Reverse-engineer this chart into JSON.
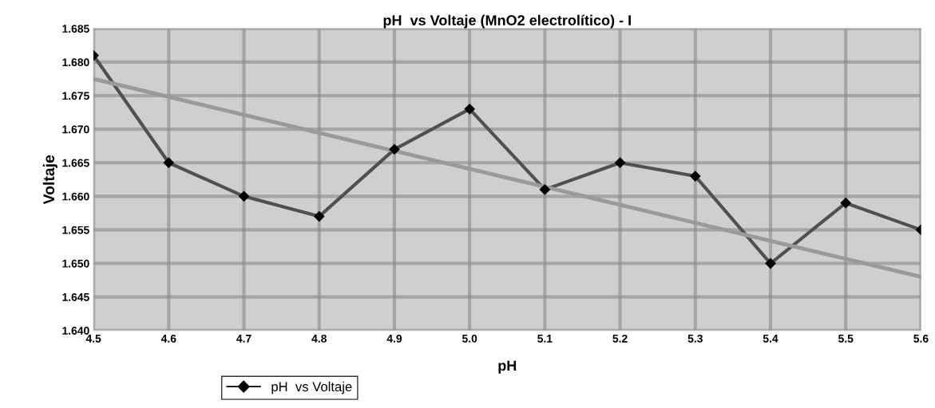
{
  "chart_data": {
    "type": "line",
    "title": "pH  vs Voltaje (MnO2 electrolítico) - I",
    "xlabel": "pH",
    "ylabel": "Voltaje",
    "x": [
      4.5,
      4.6,
      4.7,
      4.8,
      4.9,
      5.0,
      5.1,
      5.2,
      5.3,
      5.4,
      5.5,
      5.6
    ],
    "series": [
      {
        "name": "pH  vs Voltaje",
        "color": "#505050",
        "marker": "diamond",
        "values": [
          1.681,
          1.665,
          1.66,
          1.657,
          1.667,
          1.673,
          1.661,
          1.665,
          1.663,
          1.65,
          1.659,
          1.655
        ]
      },
      {
        "type": "line",
        "color": "#9a9a9a",
        "marker": "none",
        "x": [
          4.5,
          5.6
        ],
        "values": [
          1.6775,
          1.648
        ]
      }
    ],
    "xlim": [
      4.5,
      5.6
    ],
    "xticks": [
      {
        "value": 4.5,
        "label": "4.5"
      },
      {
        "value": 4.6,
        "label": "4.6"
      },
      {
        "value": 4.7,
        "label": "4.7"
      },
      {
        "value": 4.8,
        "label": "4.8"
      },
      {
        "value": 4.9,
        "label": "4.9"
      },
      {
        "value": 5.0,
        "label": "5.0"
      },
      {
        "value": 5.1,
        "label": "5.1"
      },
      {
        "value": 5.2,
        "label": "5.2"
      },
      {
        "value": 5.3,
        "label": "5.3"
      },
      {
        "value": 5.4,
        "label": "5.4"
      },
      {
        "value": 5.5,
        "label": "5.5"
      },
      {
        "value": 5.6,
        "label": "5.6"
      }
    ],
    "ylim": [
      1.64,
      1.685
    ],
    "yticks": [
      {
        "value": 1.64,
        "label": "1.640"
      },
      {
        "value": 1.645,
        "label": "1.645"
      },
      {
        "value": 1.65,
        "label": "1.650"
      },
      {
        "value": 1.655,
        "label": "1.655"
      },
      {
        "value": 1.66,
        "label": "1.660"
      },
      {
        "value": 1.665,
        "label": "1.665"
      },
      {
        "value": 1.67,
        "label": "1.670"
      },
      {
        "value": 1.675,
        "label": "1.675"
      },
      {
        "value": 1.68,
        "label": "1.680"
      },
      {
        "value": 1.685,
        "label": "1.685"
      }
    ],
    "grid": true,
    "legend": "bottom left"
  }
}
